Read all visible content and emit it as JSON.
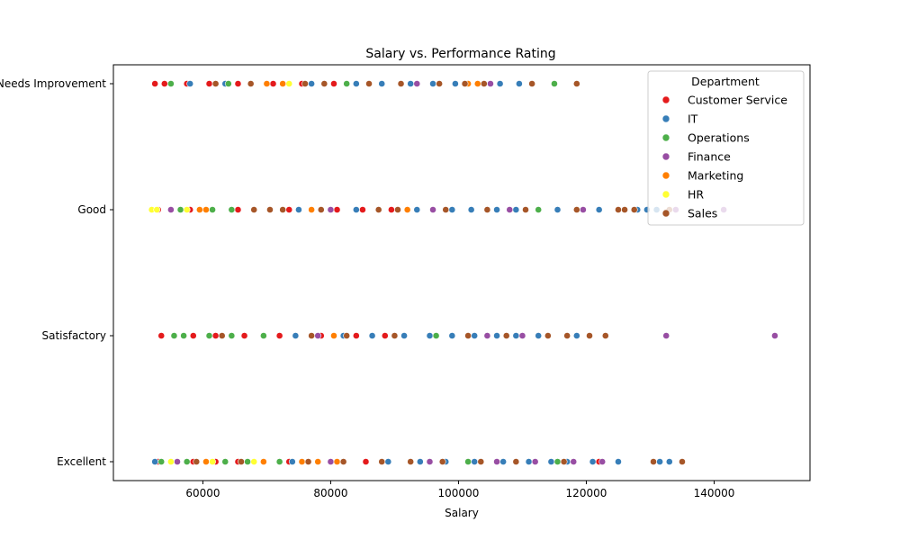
{
  "chart_data": {
    "type": "scatter",
    "title": "Salary vs. Performance Rating",
    "xlabel": "Salary",
    "ylabel": "",
    "xlim": [
      46000,
      155000
    ],
    "x_ticks": [
      60000,
      80000,
      100000,
      120000,
      140000
    ],
    "categories": [
      "Needs Improvement",
      "Good",
      "Satisfactory",
      "Excellent"
    ],
    "grid": false,
    "legend": {
      "title": "Department",
      "placement": "top-right"
    },
    "series": [
      {
        "name": "Customer Service",
        "color": "#e41a1c",
        "points": [
          {
            "x": 52500,
            "y": "Needs Improvement"
          },
          {
            "x": 54000,
            "y": "Needs Improvement"
          },
          {
            "x": 57500,
            "y": "Needs Improvement"
          },
          {
            "x": 61000,
            "y": "Needs Improvement"
          },
          {
            "x": 65500,
            "y": "Needs Improvement"
          },
          {
            "x": 71000,
            "y": "Needs Improvement"
          },
          {
            "x": 75500,
            "y": "Needs Improvement"
          },
          {
            "x": 80500,
            "y": "Needs Improvement"
          },
          {
            "x": 53000,
            "y": "Good"
          },
          {
            "x": 58000,
            "y": "Good"
          },
          {
            "x": 65500,
            "y": "Good"
          },
          {
            "x": 73500,
            "y": "Good"
          },
          {
            "x": 81000,
            "y": "Good"
          },
          {
            "x": 85000,
            "y": "Good"
          },
          {
            "x": 89500,
            "y": "Good"
          },
          {
            "x": 53500,
            "y": "Satisfactory"
          },
          {
            "x": 58500,
            "y": "Satisfactory"
          },
          {
            "x": 62000,
            "y": "Satisfactory"
          },
          {
            "x": 66500,
            "y": "Satisfactory"
          },
          {
            "x": 72000,
            "y": "Satisfactory"
          },
          {
            "x": 78500,
            "y": "Satisfactory"
          },
          {
            "x": 84000,
            "y": "Satisfactory"
          },
          {
            "x": 88500,
            "y": "Satisfactory"
          },
          {
            "x": 53000,
            "y": "Excellent"
          },
          {
            "x": 55000,
            "y": "Excellent"
          },
          {
            "x": 58500,
            "y": "Excellent"
          },
          {
            "x": 62000,
            "y": "Excellent"
          },
          {
            "x": 65500,
            "y": "Excellent"
          },
          {
            "x": 69500,
            "y": "Excellent"
          },
          {
            "x": 73500,
            "y": "Excellent"
          },
          {
            "x": 85500,
            "y": "Excellent"
          },
          {
            "x": 122000,
            "y": "Excellent"
          }
        ]
      },
      {
        "name": "IT",
        "color": "#377eb8",
        "points": [
          {
            "x": 58000,
            "y": "Needs Improvement"
          },
          {
            "x": 63500,
            "y": "Needs Improvement"
          },
          {
            "x": 77000,
            "y": "Needs Improvement"
          },
          {
            "x": 84000,
            "y": "Needs Improvement"
          },
          {
            "x": 88000,
            "y": "Needs Improvement"
          },
          {
            "x": 92500,
            "y": "Needs Improvement"
          },
          {
            "x": 96000,
            "y": "Needs Improvement"
          },
          {
            "x": 99500,
            "y": "Needs Improvement"
          },
          {
            "x": 103000,
            "y": "Needs Improvement"
          },
          {
            "x": 106500,
            "y": "Needs Improvement"
          },
          {
            "x": 109500,
            "y": "Needs Improvement"
          },
          {
            "x": 75000,
            "y": "Good"
          },
          {
            "x": 84000,
            "y": "Good"
          },
          {
            "x": 93500,
            "y": "Good"
          },
          {
            "x": 99000,
            "y": "Good"
          },
          {
            "x": 102000,
            "y": "Good"
          },
          {
            "x": 106000,
            "y": "Good"
          },
          {
            "x": 109000,
            "y": "Good"
          },
          {
            "x": 112500,
            "y": "Good"
          },
          {
            "x": 115500,
            "y": "Good"
          },
          {
            "x": 122000,
            "y": "Good"
          },
          {
            "x": 128000,
            "y": "Good"
          },
          {
            "x": 129500,
            "y": "Good"
          },
          {
            "x": 131000,
            "y": "Good"
          },
          {
            "x": 74500,
            "y": "Satisfactory"
          },
          {
            "x": 82000,
            "y": "Satisfactory"
          },
          {
            "x": 86500,
            "y": "Satisfactory"
          },
          {
            "x": 91500,
            "y": "Satisfactory"
          },
          {
            "x": 95500,
            "y": "Satisfactory"
          },
          {
            "x": 99000,
            "y": "Satisfactory"
          },
          {
            "x": 102500,
            "y": "Satisfactory"
          },
          {
            "x": 106000,
            "y": "Satisfactory"
          },
          {
            "x": 109000,
            "y": "Satisfactory"
          },
          {
            "x": 112500,
            "y": "Satisfactory"
          },
          {
            "x": 118500,
            "y": "Satisfactory"
          },
          {
            "x": 52500,
            "y": "Excellent"
          },
          {
            "x": 60500,
            "y": "Excellent"
          },
          {
            "x": 74000,
            "y": "Excellent"
          },
          {
            "x": 89000,
            "y": "Excellent"
          },
          {
            "x": 94000,
            "y": "Excellent"
          },
          {
            "x": 98000,
            "y": "Excellent"
          },
          {
            "x": 102500,
            "y": "Excellent"
          },
          {
            "x": 107000,
            "y": "Excellent"
          },
          {
            "x": 111000,
            "y": "Excellent"
          },
          {
            "x": 114500,
            "y": "Excellent"
          },
          {
            "x": 117000,
            "y": "Excellent"
          },
          {
            "x": 121000,
            "y": "Excellent"
          },
          {
            "x": 125000,
            "y": "Excellent"
          },
          {
            "x": 131500,
            "y": "Excellent"
          },
          {
            "x": 133000,
            "y": "Excellent"
          }
        ]
      },
      {
        "name": "Operations",
        "color": "#4daf4a",
        "points": [
          {
            "x": 55000,
            "y": "Needs Improvement"
          },
          {
            "x": 64000,
            "y": "Needs Improvement"
          },
          {
            "x": 82500,
            "y": "Needs Improvement"
          },
          {
            "x": 115000,
            "y": "Needs Improvement"
          },
          {
            "x": 56500,
            "y": "Good"
          },
          {
            "x": 61500,
            "y": "Good"
          },
          {
            "x": 64500,
            "y": "Good"
          },
          {
            "x": 112500,
            "y": "Good"
          },
          {
            "x": 55500,
            "y": "Satisfactory"
          },
          {
            "x": 57000,
            "y": "Satisfactory"
          },
          {
            "x": 61000,
            "y": "Satisfactory"
          },
          {
            "x": 64500,
            "y": "Satisfactory"
          },
          {
            "x": 69500,
            "y": "Satisfactory"
          },
          {
            "x": 96500,
            "y": "Satisfactory"
          },
          {
            "x": 53500,
            "y": "Excellent"
          },
          {
            "x": 57500,
            "y": "Excellent"
          },
          {
            "x": 63500,
            "y": "Excellent"
          },
          {
            "x": 67000,
            "y": "Excellent"
          },
          {
            "x": 72000,
            "y": "Excellent"
          },
          {
            "x": 101500,
            "y": "Excellent"
          },
          {
            "x": 115500,
            "y": "Excellent"
          }
        ]
      },
      {
        "name": "Finance",
        "color": "#984ea3",
        "points": [
          {
            "x": 93500,
            "y": "Needs Improvement"
          },
          {
            "x": 105000,
            "y": "Needs Improvement"
          },
          {
            "x": 55000,
            "y": "Good"
          },
          {
            "x": 80000,
            "y": "Good"
          },
          {
            "x": 96000,
            "y": "Good"
          },
          {
            "x": 108000,
            "y": "Good"
          },
          {
            "x": 119500,
            "y": "Good"
          },
          {
            "x": 134000,
            "y": "Good"
          },
          {
            "x": 141500,
            "y": "Good"
          },
          {
            "x": 78000,
            "y": "Satisfactory"
          },
          {
            "x": 104500,
            "y": "Satisfactory"
          },
          {
            "x": 110000,
            "y": "Satisfactory"
          },
          {
            "x": 132500,
            "y": "Satisfactory"
          },
          {
            "x": 149500,
            "y": "Satisfactory"
          },
          {
            "x": 56000,
            "y": "Excellent"
          },
          {
            "x": 80000,
            "y": "Excellent"
          },
          {
            "x": 95500,
            "y": "Excellent"
          },
          {
            "x": 106000,
            "y": "Excellent"
          },
          {
            "x": 112000,
            "y": "Excellent"
          },
          {
            "x": 118000,
            "y": "Excellent"
          },
          {
            "x": 122500,
            "y": "Excellent"
          }
        ]
      },
      {
        "name": "Marketing",
        "color": "#ff7f00",
        "points": [
          {
            "x": 70000,
            "y": "Needs Improvement"
          },
          {
            "x": 72500,
            "y": "Needs Improvement"
          },
          {
            "x": 101500,
            "y": "Needs Improvement"
          },
          {
            "x": 103000,
            "y": "Needs Improvement"
          },
          {
            "x": 59500,
            "y": "Good"
          },
          {
            "x": 60500,
            "y": "Good"
          },
          {
            "x": 77000,
            "y": "Good"
          },
          {
            "x": 92000,
            "y": "Good"
          },
          {
            "x": 80500,
            "y": "Satisfactory"
          },
          {
            "x": 60500,
            "y": "Excellent"
          },
          {
            "x": 69500,
            "y": "Excellent"
          },
          {
            "x": 75500,
            "y": "Excellent"
          },
          {
            "x": 78000,
            "y": "Excellent"
          },
          {
            "x": 81000,
            "y": "Excellent"
          }
        ]
      },
      {
        "name": "HR",
        "color": "#ffff33",
        "points": [
          {
            "x": 73500,
            "y": "Needs Improvement"
          },
          {
            "x": 52000,
            "y": "Good"
          },
          {
            "x": 52800,
            "y": "Good"
          },
          {
            "x": 57500,
            "y": "Good"
          },
          {
            "x": 55000,
            "y": "Excellent"
          },
          {
            "x": 61500,
            "y": "Excellent"
          },
          {
            "x": 68000,
            "y": "Excellent"
          }
        ]
      },
      {
        "name": "Sales",
        "color": "#a65628",
        "points": [
          {
            "x": 62000,
            "y": "Needs Improvement"
          },
          {
            "x": 67500,
            "y": "Needs Improvement"
          },
          {
            "x": 76000,
            "y": "Needs Improvement"
          },
          {
            "x": 79000,
            "y": "Needs Improvement"
          },
          {
            "x": 86000,
            "y": "Needs Improvement"
          },
          {
            "x": 91000,
            "y": "Needs Improvement"
          },
          {
            "x": 97000,
            "y": "Needs Improvement"
          },
          {
            "x": 101000,
            "y": "Needs Improvement"
          },
          {
            "x": 104000,
            "y": "Needs Improvement"
          },
          {
            "x": 111500,
            "y": "Needs Improvement"
          },
          {
            "x": 118500,
            "y": "Needs Improvement"
          },
          {
            "x": 68000,
            "y": "Good"
          },
          {
            "x": 70500,
            "y": "Good"
          },
          {
            "x": 72500,
            "y": "Good"
          },
          {
            "x": 78500,
            "y": "Good"
          },
          {
            "x": 87500,
            "y": "Good"
          },
          {
            "x": 90500,
            "y": "Good"
          },
          {
            "x": 98000,
            "y": "Good"
          },
          {
            "x": 104500,
            "y": "Good"
          },
          {
            "x": 110500,
            "y": "Good"
          },
          {
            "x": 118500,
            "y": "Good"
          },
          {
            "x": 125000,
            "y": "Good"
          },
          {
            "x": 126000,
            "y": "Good"
          },
          {
            "x": 127500,
            "y": "Good"
          },
          {
            "x": 133000,
            "y": "Good"
          },
          {
            "x": 63000,
            "y": "Satisfactory"
          },
          {
            "x": 77000,
            "y": "Satisfactory"
          },
          {
            "x": 82500,
            "y": "Satisfactory"
          },
          {
            "x": 90000,
            "y": "Satisfactory"
          },
          {
            "x": 101500,
            "y": "Satisfactory"
          },
          {
            "x": 107500,
            "y": "Satisfactory"
          },
          {
            "x": 114000,
            "y": "Satisfactory"
          },
          {
            "x": 117000,
            "y": "Satisfactory"
          },
          {
            "x": 120500,
            "y": "Satisfactory"
          },
          {
            "x": 123000,
            "y": "Satisfactory"
          },
          {
            "x": 59000,
            "y": "Excellent"
          },
          {
            "x": 66000,
            "y": "Excellent"
          },
          {
            "x": 76500,
            "y": "Excellent"
          },
          {
            "x": 82000,
            "y": "Excellent"
          },
          {
            "x": 88000,
            "y": "Excellent"
          },
          {
            "x": 92500,
            "y": "Excellent"
          },
          {
            "x": 97500,
            "y": "Excellent"
          },
          {
            "x": 103500,
            "y": "Excellent"
          },
          {
            "x": 109000,
            "y": "Excellent"
          },
          {
            "x": 116500,
            "y": "Excellent"
          },
          {
            "x": 130500,
            "y": "Excellent"
          },
          {
            "x": 135000,
            "y": "Excellent"
          }
        ]
      }
    ]
  }
}
